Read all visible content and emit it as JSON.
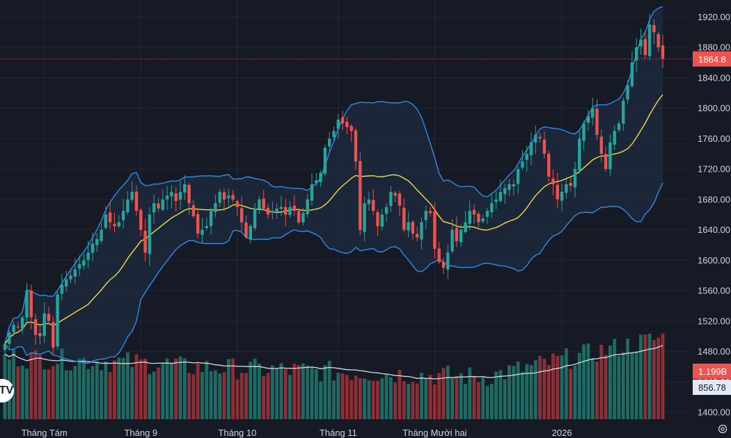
{
  "colors": {
    "background": "#161a25",
    "grid": "#232734",
    "up": "#26a69a",
    "down": "#ef5350",
    "volume_up": "#1e6b63",
    "volume_down": "#8e2f37",
    "band": "#2f8dea",
    "band_fill": "#1d2b40",
    "basis": "#f3e03a",
    "volume_ma": "#d9dbe2",
    "price_line": "#ef5350",
    "axis_text": "#d1d4dc"
  },
  "icons": {
    "logo": "tradingview-logo-icon",
    "settings": "gear-icon"
  },
  "logo_text": "TV",
  "chart_data": {
    "type": "candlestick",
    "title": "",
    "xlabel": "",
    "ylabel": "",
    "ylim": [
      1390,
      1935
    ],
    "y_ticks": [
      1400,
      1440,
      1480,
      1520,
      1560,
      1600,
      1640,
      1680,
      1720,
      1760,
      1800,
      1840,
      1880,
      1920
    ],
    "y_tick_labels": [
      "1400.00",
      "1440.00",
      "1480.00",
      "1520.00",
      "1560.00",
      "1600.00",
      "1640.00",
      "1680.00",
      "1720.00",
      "1760.00",
      "1800.00",
      "1840.00",
      "1880.00",
      "1920.00"
    ],
    "time_labels": [
      {
        "index": 9,
        "label": "Tháng Tám"
      },
      {
        "index": 31,
        "label": "Tháng 9"
      },
      {
        "index": 53,
        "label": "Tháng 10"
      },
      {
        "index": 76,
        "label": "Tháng 11"
      },
      {
        "index": 98,
        "label": "Tháng Mười hai"
      },
      {
        "index": 127,
        "label": "2026"
      }
    ],
    "last_price": 1864.8,
    "last_price_label": "1864.8",
    "volume_badge": "1.199B",
    "volume_ma_badge": "856.78",
    "volume_max": 1.75,
    "close": [
      1490,
      1505,
      1515,
      1512,
      1525,
      1560,
      1525,
      1502,
      1500,
      1530,
      1520,
      1485,
      1555,
      1568,
      1575,
      1580,
      1588,
      1595,
      1600,
      1610,
      1622,
      1628,
      1640,
      1660,
      1650,
      1645,
      1650,
      1665,
      1680,
      1690,
      1665,
      1640,
      1610,
      1660,
      1675,
      1668,
      1680,
      1685,
      1690,
      1678,
      1690,
      1700,
      1675,
      1658,
      1635,
      1640,
      1645,
      1665,
      1675,
      1690,
      1680,
      1685,
      1680,
      1670,
      1650,
      1630,
      1645,
      1668,
      1680,
      1668,
      1660,
      1665,
      1668,
      1670,
      1660,
      1670,
      1665,
      1650,
      1662,
      1680,
      1700,
      1705,
      1715,
      1748,
      1760,
      1770,
      1785,
      1780,
      1775,
      1770,
      1730,
      1640,
      1675,
      1680,
      1665,
      1645,
      1660,
      1670,
      1690,
      1685,
      1672,
      1640,
      1650,
      1635,
      1630,
      1650,
      1665,
      1662,
      1615,
      1598,
      1590,
      1610,
      1640,
      1625,
      1640,
      1650,
      1665,
      1660,
      1650,
      1655,
      1665,
      1675,
      1680,
      1690,
      1695,
      1700,
      1700,
      1720,
      1730,
      1740,
      1755,
      1765,
      1760,
      1740,
      1710,
      1700,
      1680,
      1690,
      1700,
      1698,
      1720,
      1760,
      1780,
      1790,
      1800,
      1765,
      1740,
      1720,
      1755,
      1770,
      1780,
      1810,
      1830,
      1860,
      1880,
      1890,
      1870,
      1910,
      1900,
      1880,
      1865
    ]
  }
}
